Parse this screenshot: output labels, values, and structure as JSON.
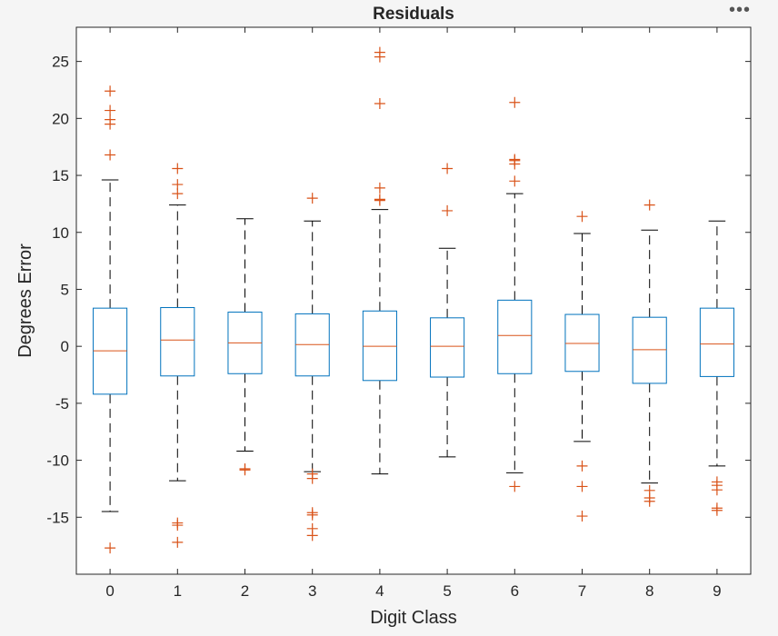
{
  "toolbar": {
    "more_icon": "ellipsis-icon",
    "more_label": "•••"
  },
  "chart_data": {
    "type": "boxplot",
    "title": "Residuals",
    "xlabel": "Digit Class",
    "ylabel": "Degrees Error",
    "categories": [
      "0",
      "1",
      "2",
      "3",
      "4",
      "5",
      "6",
      "7",
      "8",
      "9"
    ],
    "ylim": [
      -20,
      28
    ],
    "yticks": [
      -15,
      -10,
      -5,
      0,
      5,
      10,
      15,
      20,
      25
    ],
    "grid": false,
    "colors": {
      "box": "#0072BD",
      "median": "#D95319",
      "outlier": "#D95319",
      "whisker": "#000000",
      "axes": "#262626"
    },
    "boxes": [
      {
        "q1": -4.2,
        "median": -0.4,
        "q3": 3.35,
        "lower_whisker": -14.5,
        "upper_whisker": 14.6,
        "outliers": [
          22.4,
          20.7,
          19.9,
          19.5,
          16.8,
          -17.7
        ]
      },
      {
        "q1": -2.6,
        "median": 0.55,
        "q3": 3.4,
        "lower_whisker": -11.8,
        "upper_whisker": 12.4,
        "outliers": [
          15.6,
          14.2,
          13.4,
          -15.5,
          -15.7,
          -17.2
        ]
      },
      {
        "q1": -2.4,
        "median": 0.3,
        "q3": 3.0,
        "lower_whisker": -9.2,
        "upper_whisker": 11.2,
        "outliers": [
          -10.75,
          -10.85
        ]
      },
      {
        "q1": -2.6,
        "median": 0.15,
        "q3": 2.85,
        "lower_whisker": -11.0,
        "upper_whisker": 11.0,
        "outliers": [
          13.0,
          -11.2,
          -11.6,
          -14.6,
          -14.8,
          -16.0,
          -16.6
        ]
      },
      {
        "q1": -3.0,
        "median": 0.0,
        "q3": 3.1,
        "lower_whisker": -11.2,
        "upper_whisker": 12.0,
        "outliers": [
          25.8,
          25.4,
          21.3,
          13.9,
          12.9,
          12.8
        ]
      },
      {
        "q1": -2.7,
        "median": 0.0,
        "q3": 2.5,
        "lower_whisker": -9.7,
        "upper_whisker": 8.6,
        "outliers": [
          15.6,
          11.9
        ]
      },
      {
        "q1": -2.4,
        "median": 0.95,
        "q3": 4.05,
        "lower_whisker": -11.1,
        "upper_whisker": 13.4,
        "outliers": [
          21.4,
          16.4,
          16.3,
          16.0,
          14.5,
          -12.3
        ]
      },
      {
        "q1": -2.2,
        "median": 0.25,
        "q3": 2.8,
        "lower_whisker": -8.35,
        "upper_whisker": 9.9,
        "outliers": [
          11.4,
          -10.5,
          -12.3,
          -14.9
        ]
      },
      {
        "q1": -3.25,
        "median": -0.3,
        "q3": 2.55,
        "lower_whisker": -12.0,
        "upper_whisker": 10.2,
        "outliers": [
          12.4,
          -12.65,
          -13.3,
          -13.6
        ]
      },
      {
        "q1": -2.65,
        "median": 0.2,
        "q3": 3.35,
        "lower_whisker": -10.5,
        "upper_whisker": 11.0,
        "outliers": [
          -11.9,
          -12.2,
          -12.6,
          -14.2,
          -14.4
        ]
      }
    ]
  }
}
